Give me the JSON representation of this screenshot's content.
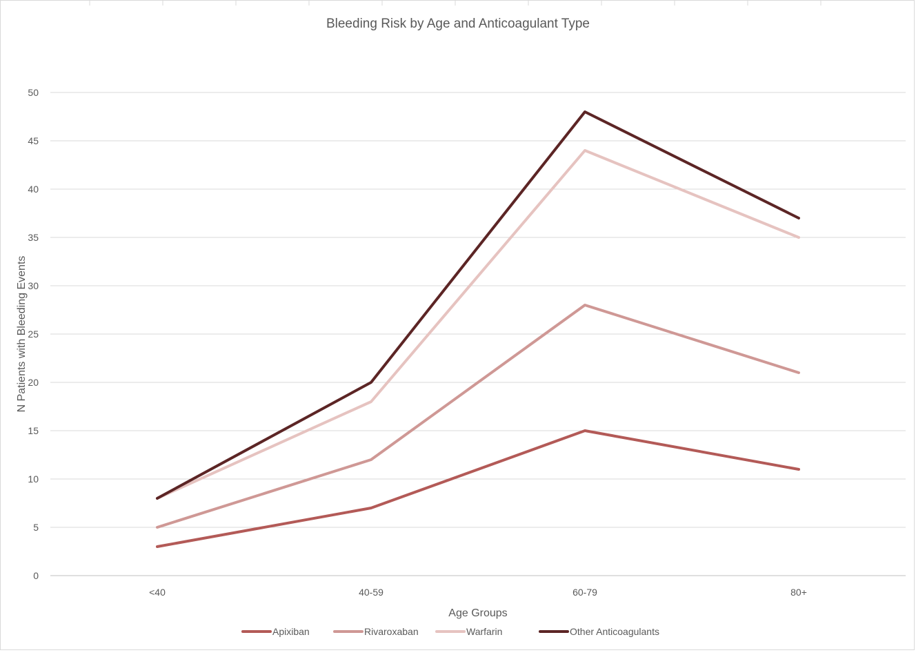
{
  "chart_data": {
    "type": "line",
    "title": "Bleeding Risk by Age and Anticoagulant Type",
    "xlabel": "Age Groups",
    "ylabel": "N Patients with Bleeding Events",
    "categories": [
      "<40",
      "40-59",
      "60-79",
      "80+"
    ],
    "ylim": [
      0,
      50
    ],
    "yticks": [
      "0",
      "5",
      "10",
      "15",
      "20",
      "25",
      "30",
      "35",
      "40",
      "45",
      "50"
    ],
    "grid": true,
    "legend_position": "bottom",
    "series": [
      {
        "name": "Apixiban",
        "color": "#b35a57",
        "values": [
          3,
          7,
          15,
          11
        ]
      },
      {
        "name": "Rivaroxaban",
        "color": "#cf9895",
        "values": [
          5,
          12,
          28,
          21
        ]
      },
      {
        "name": "Warfarin",
        "color": "#e6c3c0",
        "values": [
          8,
          18,
          44,
          35
        ]
      },
      {
        "name": "Other Anticoagulants",
        "color": "#5c2525",
        "values": [
          8,
          20,
          48,
          37
        ]
      }
    ]
  }
}
